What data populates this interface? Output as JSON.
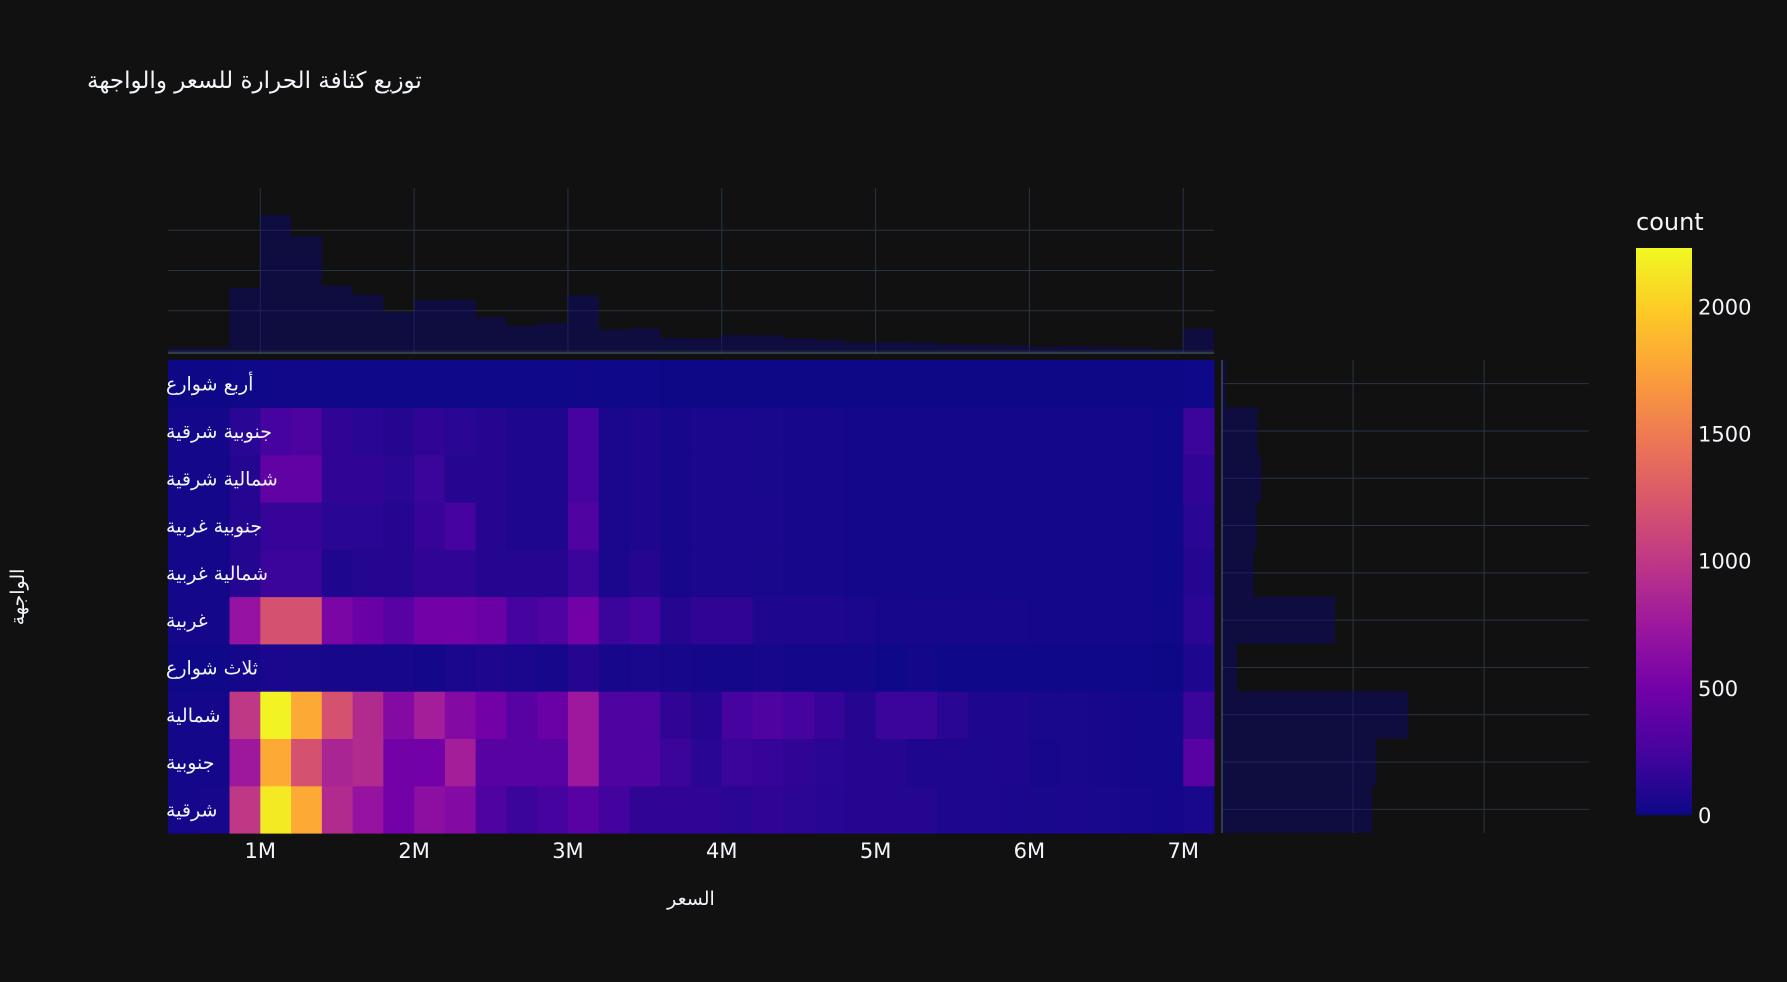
{
  "chart_data": {
    "type": "heatmap",
    "title": "توزيع كثافة الحرارة للسعر والواجهة",
    "xlabel": "السعر",
    "ylabel": "الواجهة",
    "x_bin_start": 400000,
    "x_bin_width": 200000,
    "x_ticks": [
      {
        "value": 1000000,
        "label": "1M"
      },
      {
        "value": 2000000,
        "label": "2M"
      },
      {
        "value": 3000000,
        "label": "3M"
      },
      {
        "value": 4000000,
        "label": "4M"
      },
      {
        "value": 5000000,
        "label": "5M"
      },
      {
        "value": 6000000,
        "label": "6M"
      },
      {
        "value": 7000000,
        "label": "7M"
      }
    ],
    "xlim": [
      400000,
      7200000
    ],
    "categories": [
      "شرقية",
      "جنوبية",
      "شمالية",
      "ثلاث شوارع",
      "غربية",
      "شمالية غربية",
      "جنوبية غربية",
      "شمالية شرقية",
      "جنوبية شرقية",
      "أربع شوارع"
    ],
    "z": [
      [
        30,
        40,
        1000,
        2150,
        1800,
        900,
        700,
        500,
        650,
        600,
        300,
        200,
        250,
        350,
        240,
        150,
        150,
        150,
        120,
        150,
        130,
        110,
        100,
        100,
        100,
        80,
        70,
        60,
        50,
        60,
        50,
        40,
        30,
        50
      ],
      [
        20,
        30,
        750,
        1800,
        1200,
        850,
        900,
        500,
        500,
        800,
        350,
        350,
        350,
        750,
        300,
        300,
        200,
        120,
        200,
        180,
        150,
        120,
        100,
        100,
        80,
        80,
        70,
        80,
        40,
        50,
        40,
        30,
        20,
        350
      ],
      [
        20,
        30,
        1000,
        2200,
        1800,
        1200,
        900,
        600,
        800,
        600,
        500,
        350,
        450,
        750,
        300,
        300,
        150,
        100,
        250,
        300,
        250,
        180,
        100,
        200,
        200,
        120,
        80,
        80,
        50,
        50,
        40,
        30,
        20,
        200
      ],
      [
        10,
        10,
        30,
        60,
        50,
        40,
        40,
        40,
        30,
        60,
        80,
        60,
        40,
        100,
        40,
        50,
        40,
        30,
        30,
        40,
        20,
        20,
        20,
        10,
        20,
        10,
        10,
        10,
        10,
        10,
        10,
        10,
        5,
        80
      ],
      [
        30,
        30,
        700,
        1200,
        1200,
        550,
        450,
        350,
        500,
        500,
        450,
        250,
        300,
        500,
        200,
        250,
        100,
        150,
        150,
        80,
        80,
        80,
        60,
        40,
        40,
        40,
        40,
        40,
        30,
        30,
        20,
        20,
        15,
        130
      ],
      [
        20,
        20,
        100,
        200,
        200,
        80,
        100,
        100,
        150,
        150,
        100,
        100,
        100,
        200,
        60,
        100,
        40,
        60,
        60,
        50,
        40,
        40,
        30,
        30,
        20,
        20,
        30,
        20,
        20,
        20,
        20,
        20,
        10,
        100
      ],
      [
        20,
        20,
        100,
        180,
        180,
        120,
        120,
        100,
        180,
        250,
        100,
        80,
        80,
        300,
        60,
        80,
        40,
        60,
        60,
        60,
        40,
        40,
        30,
        30,
        20,
        20,
        30,
        20,
        20,
        20,
        20,
        20,
        10,
        120
      ],
      [
        20,
        20,
        100,
        400,
        400,
        150,
        150,
        120,
        200,
        100,
        100,
        80,
        80,
        250,
        60,
        80,
        40,
        60,
        60,
        50,
        40,
        40,
        30,
        30,
        20,
        20,
        30,
        20,
        20,
        20,
        20,
        20,
        10,
        150
      ],
      [
        20,
        20,
        120,
        250,
        280,
        150,
        120,
        100,
        150,
        120,
        100,
        80,
        80,
        250,
        60,
        80,
        40,
        60,
        60,
        50,
        40,
        40,
        30,
        30,
        20,
        20,
        30,
        20,
        20,
        20,
        20,
        20,
        10,
        200
      ],
      [
        5,
        5,
        10,
        15,
        15,
        10,
        10,
        10,
        10,
        10,
        10,
        10,
        10,
        15,
        10,
        10,
        5,
        5,
        5,
        5,
        5,
        5,
        5,
        5,
        5,
        5,
        5,
        5,
        5,
        5,
        5,
        5,
        5,
        10
      ]
    ],
    "zlim": [
      0,
      2230
    ],
    "colorscale": [
      "#0d0887",
      "#46039f",
      "#7201a8",
      "#9c179e",
      "#bd3786",
      "#d8576b",
      "#ed7953",
      "#fb9f3a",
      "#fdca26",
      "#f0f921"
    ],
    "colorbar": {
      "title": "count",
      "ticks": [
        {
          "value": 0,
          "label": "0"
        },
        {
          "value": 500,
          "label": "500"
        },
        {
          "value": 1000,
          "label": "1000"
        },
        {
          "value": 1500,
          "label": "1500"
        },
        {
          "value": 2000,
          "label": "2000"
        }
      ]
    },
    "marginal_x_max": 10000,
    "marginal_y_max": 28000,
    "marginal_y_grid": [
      10000,
      20000
    ],
    "marginal_color": "#0d0887",
    "marginal_opacity": 0.4,
    "grid": true
  }
}
